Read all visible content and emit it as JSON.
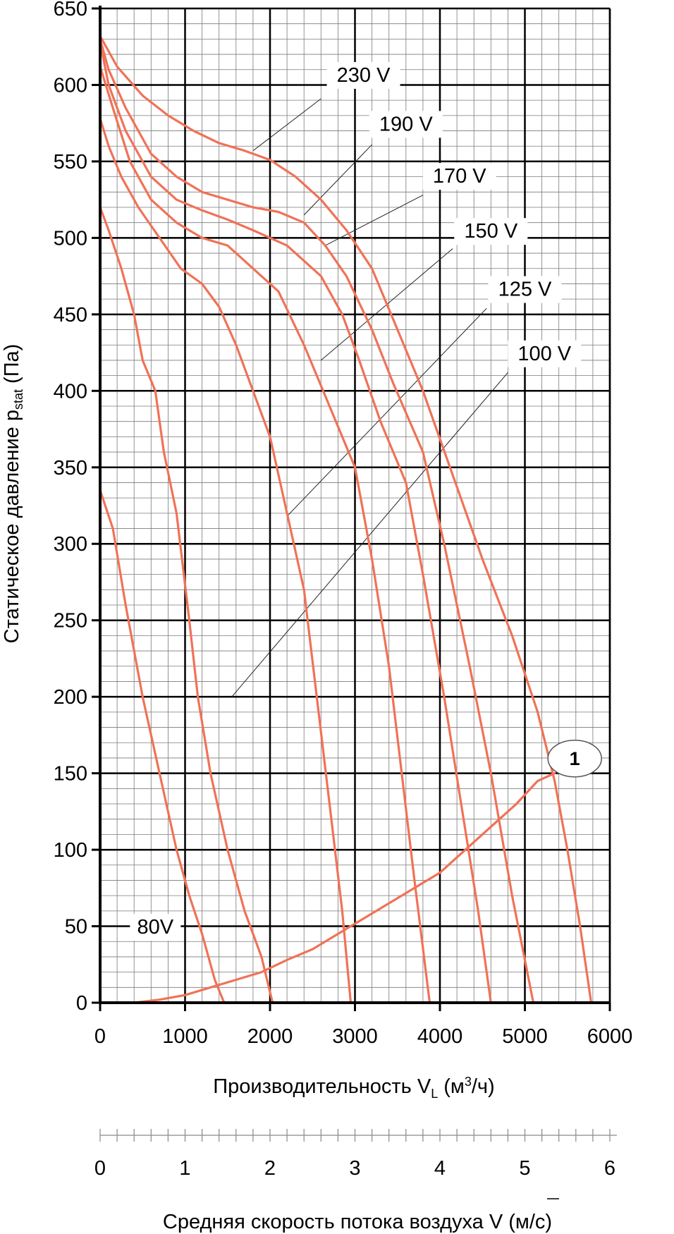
{
  "chart_data": {
    "type": "line",
    "ylabel_main": "Статическое давление p",
    "ylabel_sub": "stat",
    "ylabel_unit": " (Па)",
    "xlabel_main": "Производительность V",
    "xlabel_sub": "L",
    "xlabel_unit_pre": " (м",
    "xlabel_sup": "3",
    "xlabel_unit_post": "/ч)",
    "x2label_pre": "Средняя скорость потока воздуха ",
    "x2label_symbol": "V",
    "x2label_post": " (м/с)",
    "xlim": [
      0,
      6000
    ],
    "ylim": [
      0,
      650
    ],
    "x_ticks": [
      "0",
      "1000",
      "2000",
      "3000",
      "4000",
      "5000",
      "6000"
    ],
    "y_ticks": [
      "0",
      "50",
      "100",
      "150",
      "200",
      "250",
      "300",
      "350",
      "400",
      "450",
      "500",
      "550",
      "600",
      "650"
    ],
    "x2lim": [
      0,
      6
    ],
    "x2_ticks": [
      "0",
      "1",
      "2",
      "3",
      "4",
      "5",
      "6"
    ],
    "grid": true,
    "curve_color": "#f07257",
    "series": [
      {
        "name": "80V",
        "points": [
          [
            0,
            335
          ],
          [
            150,
            310
          ],
          [
            300,
            260
          ],
          [
            500,
            200
          ],
          [
            700,
            150
          ],
          [
            900,
            100
          ],
          [
            1050,
            70
          ],
          [
            1200,
            45
          ],
          [
            1350,
            15
          ],
          [
            1460,
            0
          ]
        ]
      },
      {
        "name": "100 V",
        "points": [
          [
            0,
            520
          ],
          [
            100,
            505
          ],
          [
            250,
            480
          ],
          [
            400,
            450
          ],
          [
            500,
            420
          ],
          [
            650,
            400
          ],
          [
            750,
            360
          ],
          [
            900,
            320
          ],
          [
            1050,
            250
          ],
          [
            1150,
            200
          ],
          [
            1300,
            150
          ],
          [
            1500,
            100
          ],
          [
            1700,
            60
          ],
          [
            1900,
            30
          ],
          [
            2030,
            0
          ]
        ]
      },
      {
        "name": "125 V",
        "points": [
          [
            0,
            578
          ],
          [
            100,
            560
          ],
          [
            250,
            540
          ],
          [
            450,
            520
          ],
          [
            700,
            500
          ],
          [
            950,
            480
          ],
          [
            1200,
            470
          ],
          [
            1400,
            455
          ],
          [
            1600,
            430
          ],
          [
            1800,
            400
          ],
          [
            2000,
            370
          ],
          [
            2200,
            320
          ],
          [
            2400,
            270
          ],
          [
            2550,
            200
          ],
          [
            2700,
            130
          ],
          [
            2850,
            60
          ],
          [
            2950,
            0
          ]
        ]
      },
      {
        "name": "150 V",
        "points": [
          [
            0,
            612
          ],
          [
            150,
            585
          ],
          [
            350,
            550
          ],
          [
            600,
            525
          ],
          [
            900,
            510
          ],
          [
            1200,
            500
          ],
          [
            1500,
            495
          ],
          [
            1800,
            480
          ],
          [
            2100,
            465
          ],
          [
            2400,
            430
          ],
          [
            2700,
            390
          ],
          [
            3000,
            350
          ],
          [
            3200,
            290
          ],
          [
            3400,
            220
          ],
          [
            3550,
            150
          ],
          [
            3700,
            80
          ],
          [
            3880,
            0
          ]
        ]
      },
      {
        "name": "170 V",
        "points": [
          [
            0,
            628
          ],
          [
            100,
            600
          ],
          [
            300,
            570
          ],
          [
            600,
            540
          ],
          [
            900,
            525
          ],
          [
            1200,
            518
          ],
          [
            1500,
            512
          ],
          [
            1800,
            505
          ],
          [
            2200,
            495
          ],
          [
            2600,
            475
          ],
          [
            2850,
            450
          ],
          [
            3050,
            420
          ],
          [
            3300,
            380
          ],
          [
            3600,
            340
          ],
          [
            3800,
            280
          ],
          [
            4050,
            200
          ],
          [
            4250,
            130
          ],
          [
            4450,
            60
          ],
          [
            4600,
            0
          ]
        ]
      },
      {
        "name": "190 V",
        "points": [
          [
            0,
            630
          ],
          [
            100,
            610
          ],
          [
            300,
            585
          ],
          [
            600,
            555
          ],
          [
            900,
            540
          ],
          [
            1200,
            530
          ],
          [
            1500,
            525
          ],
          [
            1800,
            520
          ],
          [
            2100,
            517
          ],
          [
            2400,
            510
          ],
          [
            2650,
            495
          ],
          [
            2900,
            475
          ],
          [
            3200,
            440
          ],
          [
            3450,
            405
          ],
          [
            3800,
            360
          ],
          [
            4050,
            300
          ],
          [
            4350,
            220
          ],
          [
            4600,
            150
          ],
          [
            4850,
            70
          ],
          [
            5100,
            0
          ]
        ]
      },
      {
        "name": "230 V",
        "points": [
          [
            0,
            632
          ],
          [
            200,
            612
          ],
          [
            500,
            593
          ],
          [
            800,
            580
          ],
          [
            1100,
            570
          ],
          [
            1400,
            562
          ],
          [
            1700,
            557
          ],
          [
            2000,
            551
          ],
          [
            2300,
            540
          ],
          [
            2600,
            525
          ],
          [
            2900,
            505
          ],
          [
            3200,
            480
          ],
          [
            3500,
            440
          ],
          [
            3800,
            400
          ],
          [
            4150,
            345
          ],
          [
            4500,
            290
          ],
          [
            4850,
            240
          ],
          [
            5150,
            190
          ],
          [
            5350,
            145
          ],
          [
            5500,
            100
          ],
          [
            5650,
            50
          ],
          [
            5780,
            0
          ]
        ]
      },
      {
        "name": "1",
        "points": [
          [
            0,
            0
          ],
          [
            400,
            0
          ],
          [
            700,
            2
          ],
          [
            1000,
            5
          ],
          [
            1300,
            10
          ],
          [
            1600,
            15
          ],
          [
            1900,
            20
          ],
          [
            2200,
            28
          ],
          [
            2500,
            35
          ],
          [
            2800,
            45
          ],
          [
            3100,
            55
          ],
          [
            3400,
            65
          ],
          [
            3700,
            75
          ],
          [
            4000,
            85
          ],
          [
            4300,
            100
          ],
          [
            4600,
            115
          ],
          [
            4900,
            130
          ],
          [
            5150,
            145
          ],
          [
            5350,
            150
          ]
        ]
      }
    ]
  }
}
